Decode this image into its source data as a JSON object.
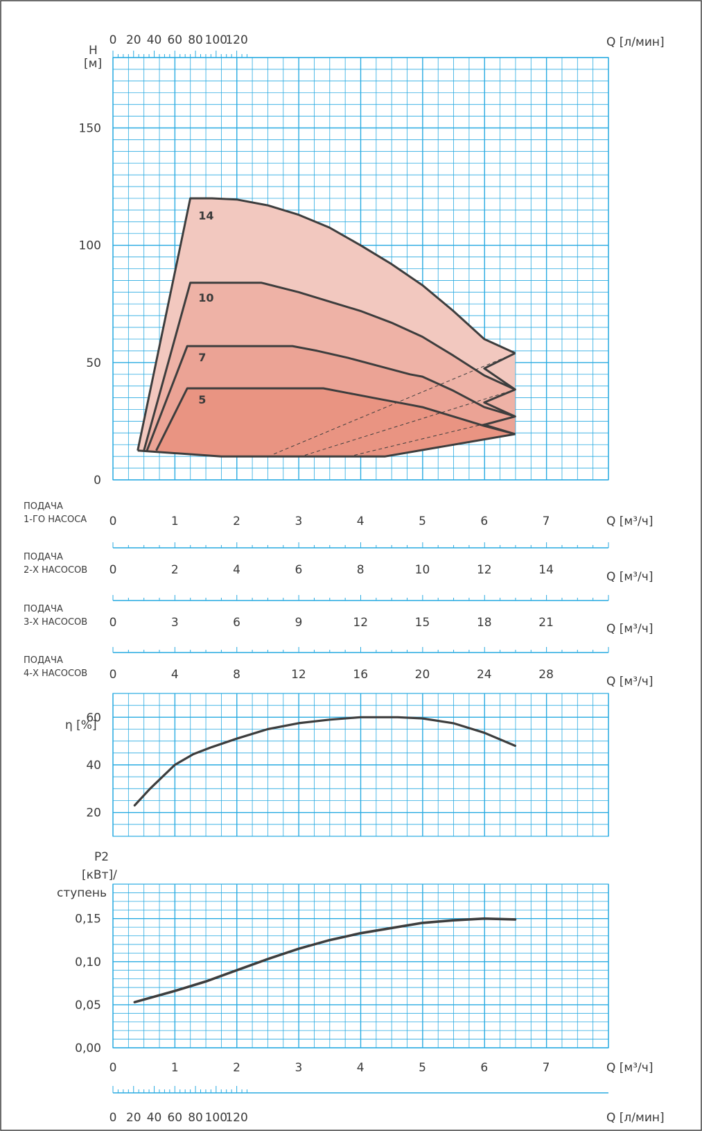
{
  "colors": {
    "grid": "#27aae1",
    "curve": "#3d3d3d",
    "fill14": "#f2c8bf",
    "fill10": "#eeb2a6",
    "fill7": "#eba395",
    "fill5": "#e99482",
    "border": "#3d3d3d"
  },
  "axes_text": {
    "h_label_1": "H",
    "h_label_2": "[м]",
    "q_lmin_top": "Q [л/мин]",
    "q_m3h_main": "Q [м³/ч]",
    "q_m3h_2": "Q [м³/ч]",
    "q_m3h_3": "Q [м³/ч]",
    "q_m3h_4": "Q [м³/ч]",
    "q_m3h_bottom": "Q [м³/ч]",
    "q_lmin_bottom": "Q [л/мин]",
    "eta_label": "η [%]",
    "p2_label_1": "P2",
    "p2_label_2": "[кВт]/",
    "p2_label_3": "ступень",
    "feed1_line1": "ПОДАЧА",
    "feed1_line2": "1-ГО НАСОСА",
    "feed2_line1": "ПОДАЧА",
    "feed2_line2": "2-Х НАСОСОВ",
    "feed3_line1": "ПОДАЧА",
    "feed3_line2": "3-Х НАСОСОВ",
    "feed4_line1": "ПОДАЧА",
    "feed4_line2": "4-Х НАСОСОВ"
  },
  "chart_data": [
    {
      "type": "area",
      "xlabel": "Q [м³/ч]",
      "ylabel": "H [м]",
      "xlim": [
        0,
        8
      ],
      "ylim": [
        0,
        180
      ],
      "grid": true,
      "x_ticks": [
        "0",
        "1",
        "2",
        "3",
        "4",
        "5",
        "6",
        "7"
      ],
      "y_ticks": [
        "0",
        "50",
        "100",
        "150"
      ],
      "top_axis": {
        "label": "Q [л/мин]",
        "ticks": [
          "0",
          "20",
          "40",
          "60",
          "80",
          "100",
          "120"
        ]
      },
      "extra_axes": [
        {
          "name": "ПОДАЧА 2-Х НАСОСОВ",
          "ticks": [
            "0",
            "2",
            "4",
            "6",
            "8",
            "10",
            "12",
            "14"
          ]
        },
        {
          "name": "ПОДАЧА 3-Х НАСОСОВ",
          "ticks": [
            "0",
            "3",
            "6",
            "9",
            "12",
            "15",
            "18",
            "21"
          ]
        },
        {
          "name": "ПОДАЧА 4-Х НАСОСОВ",
          "ticks": [
            "0",
            "4",
            "8",
            "12",
            "16",
            "20",
            "24",
            "28"
          ]
        }
      ],
      "series": [
        {
          "name": "14",
          "head": [
            [
              1.25,
              120
            ],
            [
              1.6,
              120
            ],
            [
              2.0,
              119.5
            ],
            [
              2.5,
              117
            ],
            [
              3.0,
              113
            ],
            [
              3.5,
              107.5
            ],
            [
              4.0,
              100
            ],
            [
              4.5,
              92
            ],
            [
              5.0,
              83
            ],
            [
              5.5,
              72
            ],
            [
              6.0,
              60
            ],
            [
              6.5,
              54
            ]
          ],
          "lower_right": [
            6.5,
            54
          ],
          "left": [
            0.4,
            12.5
          ]
        },
        {
          "name": "10",
          "head": [
            [
              1.25,
              84
            ],
            [
              2.0,
              84
            ],
            [
              2.4,
              84
            ],
            [
              3.0,
              80
            ],
            [
              3.5,
              76
            ],
            [
              4.0,
              72
            ],
            [
              4.5,
              67
            ],
            [
              5.0,
              61
            ],
            [
              5.5,
              53
            ],
            [
              6.0,
              44.5
            ],
            [
              6.5,
              38.5
            ]
          ],
          "left": [
            0.5,
            12.5
          ]
        },
        {
          "name": "7",
          "head": [
            [
              1.2,
              57
            ],
            [
              2.5,
              57
            ],
            [
              2.9,
              57
            ],
            [
              3.3,
              55
            ],
            [
              3.8,
              52
            ],
            [
              4.3,
              48.5
            ],
            [
              4.8,
              45
            ],
            [
              5.0,
              44
            ],
            [
              5.5,
              38
            ],
            [
              6.0,
              31
            ],
            [
              6.5,
              27
            ]
          ],
          "left": [
            0.55,
            12.5
          ]
        },
        {
          "name": "5",
          "head": [
            [
              1.2,
              39
            ],
            [
              2.5,
              39
            ],
            [
              3.4,
              39
            ],
            [
              3.8,
              37
            ],
            [
              4.3,
              34.5
            ],
            [
              4.8,
              32
            ],
            [
              5.0,
              31
            ],
            [
              5.5,
              27
            ],
            [
              6.0,
              23
            ],
            [
              6.5,
              19.5
            ]
          ],
          "left": [
            0.7,
            12.5
          ]
        }
      ],
      "lower_boundary": [
        [
          0.4,
          12.5
        ],
        [
          1.2,
          11
        ],
        [
          1.75,
          10
        ],
        [
          2.8,
          10
        ],
        [
          3.4,
          10
        ],
        [
          4.4,
          10
        ],
        [
          6.5,
          19.5
        ]
      ],
      "dashed_lines": [
        [
          [
            2.6,
            11
          ],
          [
            6.5,
            54
          ]
        ],
        [
          [
            3.1,
            10.5
          ],
          [
            6.5,
            38.5
          ]
        ],
        [
          [
            3.9,
            10.5
          ],
          [
            6.5,
            27
          ]
        ]
      ]
    },
    {
      "type": "line",
      "ylabel": "η [%]",
      "xlim": [
        0,
        8
      ],
      "ylim": [
        10,
        70
      ],
      "y_ticks": [
        "20",
        "40",
        "60"
      ],
      "grid": true,
      "series": [
        {
          "x": [
            0.35,
            0.6,
            0.8,
            1.0,
            1.3,
            1.6,
            2.0,
            2.5,
            3.0,
            3.5,
            4.0,
            4.3,
            4.6,
            5.0,
            5.5,
            6.0,
            6.5
          ],
          "y": [
            23,
            30,
            35,
            40,
            44.5,
            47.5,
            51,
            55,
            57.5,
            59,
            60,
            60,
            60,
            59.5,
            57.5,
            53.5,
            48
          ]
        }
      ]
    },
    {
      "type": "line",
      "ylabel": "P2 [кВт]/ ступень",
      "xlim": [
        0,
        8
      ],
      "ylim": [
        0,
        0.19
      ],
      "y_ticks": [
        "0,00",
        "0,05",
        "0,10",
        "0,15"
      ],
      "x_ticks": [
        "0",
        "1",
        "2",
        "3",
        "4",
        "5",
        "6",
        "7"
      ],
      "xlabel": "Q [м³/ч]",
      "bottom_axis": {
        "label": "Q [л/мин]",
        "ticks": [
          "0",
          "20",
          "40",
          "60",
          "80",
          "100",
          "120"
        ]
      },
      "grid": true,
      "series": [
        {
          "x": [
            0.35,
            1.0,
            1.5,
            2.0,
            2.5,
            3.0,
            3.5,
            4.0,
            4.5,
            5.0,
            5.5,
            6.0,
            6.5
          ],
          "y": [
            0.053,
            0.066,
            0.077,
            0.09,
            0.103,
            0.115,
            0.125,
            0.133,
            0.139,
            0.145,
            0.148,
            0.15,
            0.149
          ]
        }
      ]
    }
  ]
}
